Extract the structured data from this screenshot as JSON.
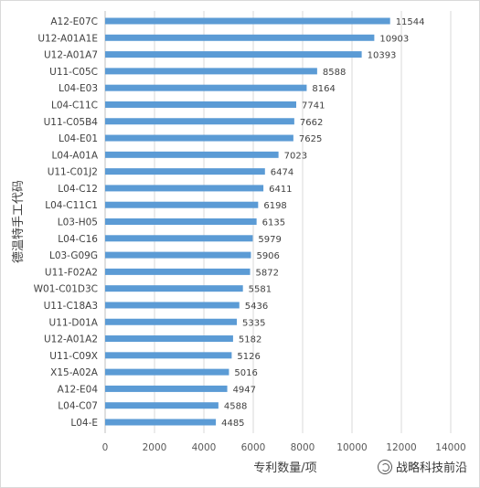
{
  "chart_data": {
    "type": "bar",
    "orientation": "horizontal",
    "categories": [
      "A12-E07C",
      "U12-A01A1E",
      "U12-A01A7",
      "U11-C05C",
      "L04-E03",
      "L04-C11C",
      "U11-C05B4",
      "L04-E01",
      "L04-A01A",
      "U11-C01J2",
      "L04-C12",
      "L04-C11C1",
      "L03-H05",
      "L04-C16",
      "L03-G09G",
      "U11-F02A2",
      "W01-C01D3C",
      "U11-C18A3",
      "U11-D01A",
      "U12-A01A2",
      "U11-C09X",
      "X15-A02A",
      "A12-E04",
      "L04-C07",
      "L04-E"
    ],
    "values": [
      11544,
      10903,
      10393,
      8588,
      8164,
      7741,
      7662,
      7625,
      7023,
      6474,
      6411,
      6198,
      6135,
      5979,
      5906,
      5872,
      5581,
      5436,
      5335,
      5182,
      5126,
      5016,
      4947,
      4588,
      4485
    ],
    "value_labels": [
      "11544",
      "10903",
      "10393",
      "8588",
      "8164",
      "7741",
      "7662",
      "7625",
      "7023",
      "6474",
      "6411",
      "6198",
      "6135",
      "5979",
      "5906",
      "5872",
      "5581",
      "5436",
      "5335",
      "5182",
      "5126",
      "5016",
      "4947",
      "4588",
      "4485"
    ],
    "xlabel": "专利数量/项",
    "ylabel": "德温特手工代码",
    "xlim": [
      0,
      14000
    ],
    "xticks": [
      0,
      2000,
      4000,
      6000,
      8000,
      10000,
      12000,
      14000
    ],
    "xtick_labels": [
      "0",
      "2000",
      "4000",
      "6000",
      "8000",
      "10000",
      "12000",
      "14000"
    ],
    "grid": true,
    "legend": "none",
    "bar_color": "#5b9bd5",
    "grid_color": "#d9d9d9"
  },
  "watermark": {
    "text": "战略科技前沿",
    "icon": "wechat-icon"
  }
}
